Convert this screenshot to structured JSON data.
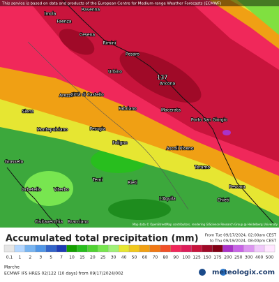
{
  "banner": "This service is based on data and products of the European Centre for Medium-range Weather Forecasts (ECMWF)",
  "places": [
    "Imola",
    "Faenza",
    "Ravenna",
    "Cesena",
    "Rimini",
    "Pesaro",
    "Urbino",
    "Ancona",
    "Arezzo",
    "Città di Castello",
    "Fabriano",
    "Macerata",
    "Porto San Giorgio",
    "Siena",
    "Montepulciano",
    "Perugia",
    "Foligno",
    "Ascoli Piceno",
    "Teramo",
    "Terni",
    "Rieti",
    "L'Aquila",
    "Pescara",
    "Chieti",
    "Grosseto",
    "Orbetello",
    "Viterbo",
    "Civitavecchia",
    "Bracciano"
  ],
  "max_label": "137",
  "attribution": "Map data © OpenStreetMap contributors, rendering GIScience Research Group @ Heidelberg University",
  "legend": {
    "title": "Accumulated total precipitation (mm)",
    "from": "From Tue 09/17/2024, 02:00am CEST",
    "to": "to Thu 09/19/2024, 08:00pm CEST",
    "ticks": [
      0.1,
      1,
      2,
      3,
      5,
      7,
      10,
      15,
      20,
      25,
      30,
      40,
      50,
      60,
      70,
      80,
      90,
      100,
      125,
      150,
      175,
      200,
      250,
      300,
      400,
      500
    ],
    "colors": [
      "#e6e6e6",
      "#b4d7ff",
      "#78b4f0",
      "#5096e6",
      "#3264c8",
      "#1e3cb4",
      "#14a000",
      "#28be1e",
      "#50d232",
      "#78e650",
      "#a0f078",
      "#e6e632",
      "#f0c81e",
      "#f0a014",
      "#f07814",
      "#f05028",
      "#f0285a",
      "#dc1e5a",
      "#c8143c",
      "#a00a28",
      "#820014",
      "#aa32c8",
      "#c864e6",
      "#dc96f0",
      "#f0c8fa",
      "#ffe6ff"
    ]
  },
  "footer": {
    "region": "Marche",
    "model": "ECMWF IFS HRES 02/122 (10 days) from 09/17/2024/002",
    "brand": "meteologix.com"
  }
}
